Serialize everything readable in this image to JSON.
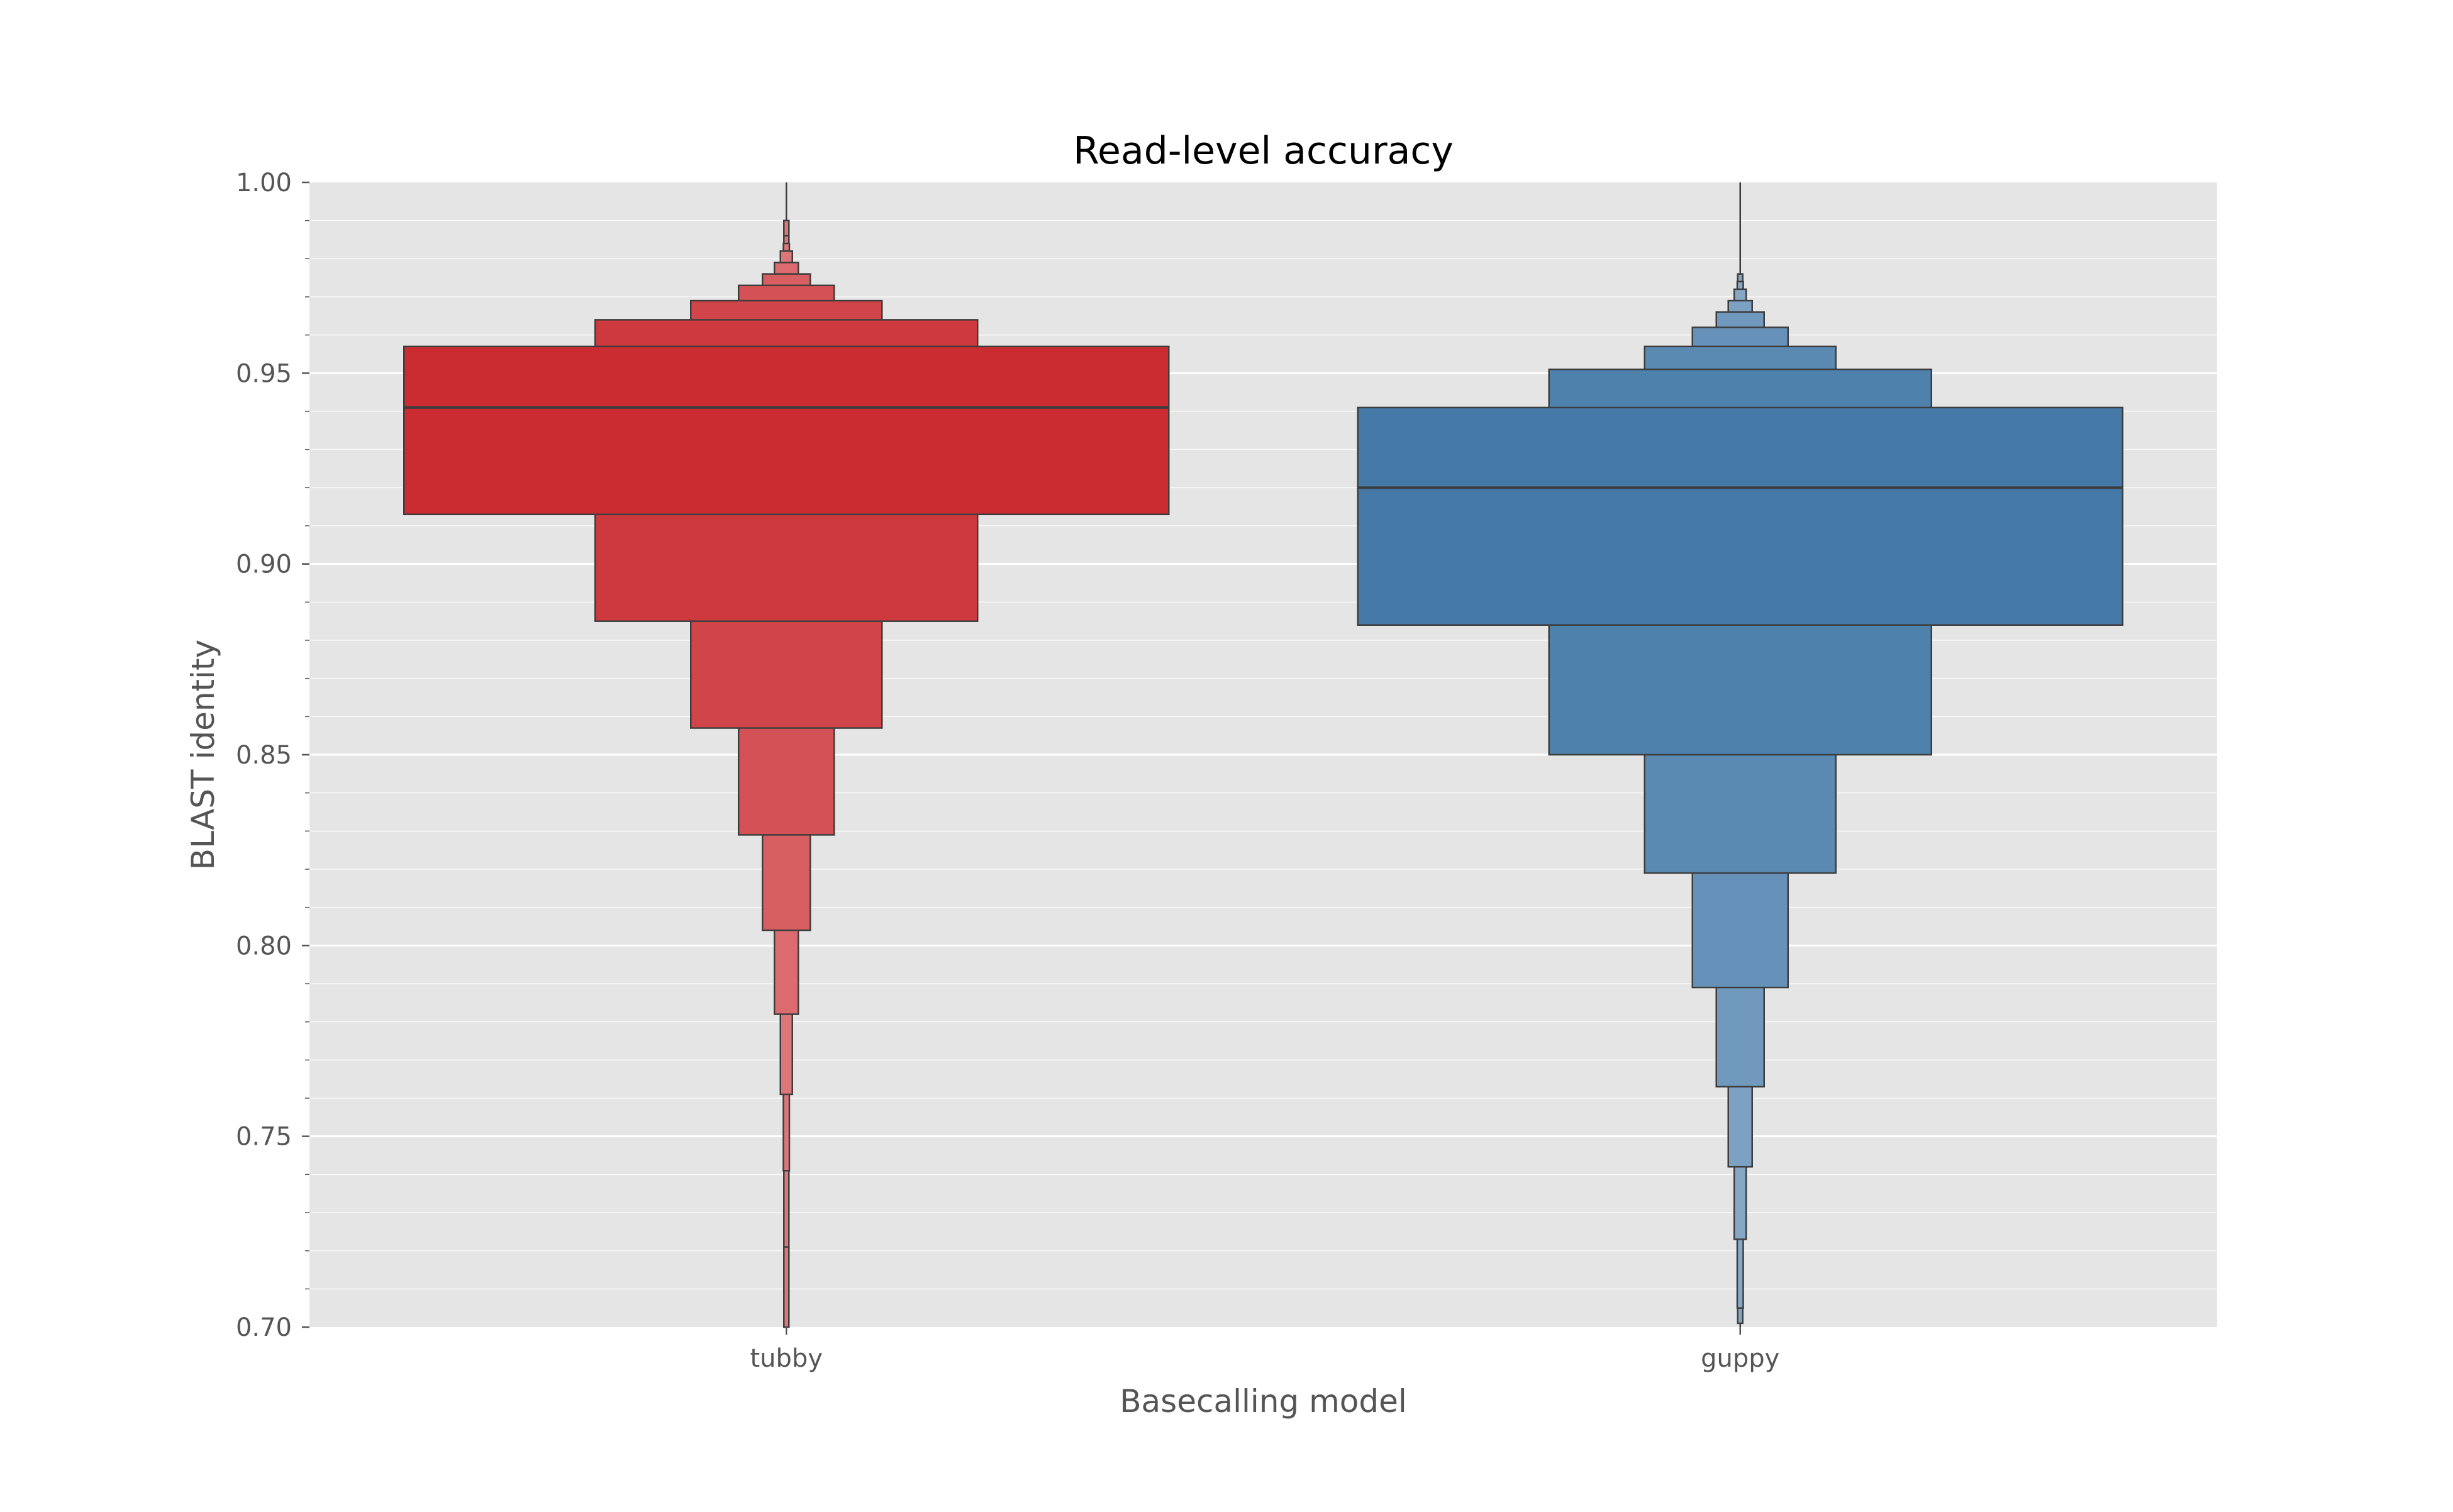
{
  "chart_data": {
    "type": "boxen",
    "title": "Read-level accuracy",
    "xlabel": "Basecalling model",
    "ylabel": "BLAST identity",
    "ylim": [
      0.7,
      1.0
    ],
    "yticks": [
      0.7,
      0.75,
      0.8,
      0.85,
      0.9,
      0.95,
      1.0
    ],
    "ytick_labels": [
      "0.70",
      "0.75",
      "0.80",
      "0.85",
      "0.90",
      "0.95",
      "1.00"
    ],
    "minor_ytick_step": 0.01,
    "grid": true,
    "background_color": "#e5e5e5",
    "grid_color": "#ffffff",
    "categories": [
      "tubby",
      "guppy"
    ],
    "series": [
      {
        "category": "tubby",
        "color": "#cb2c31",
        "median": 0.941,
        "levels": [
          [
            0.913,
            0.957
          ],
          [
            0.885,
            0.964
          ],
          [
            0.857,
            0.969
          ],
          [
            0.829,
            0.973
          ],
          [
            0.804,
            0.976
          ],
          [
            0.782,
            0.979
          ],
          [
            0.761,
            0.982
          ],
          [
            0.741,
            0.984
          ],
          [
            0.721,
            0.986
          ],
          [
            0.7,
            0.99
          ]
        ],
        "whisker": [
          0.7,
          1.0
        ]
      },
      {
        "category": "guppy",
        "color": "#4479a8",
        "median": 0.92,
        "levels": [
          [
            0.884,
            0.941
          ],
          [
            0.85,
            0.951
          ],
          [
            0.819,
            0.957
          ],
          [
            0.789,
            0.962
          ],
          [
            0.763,
            0.966
          ],
          [
            0.742,
            0.969
          ],
          [
            0.723,
            0.972
          ],
          [
            0.705,
            0.974
          ],
          [
            0.701,
            0.976
          ]
        ],
        "whisker": [
          0.7,
          1.0
        ]
      }
    ]
  }
}
